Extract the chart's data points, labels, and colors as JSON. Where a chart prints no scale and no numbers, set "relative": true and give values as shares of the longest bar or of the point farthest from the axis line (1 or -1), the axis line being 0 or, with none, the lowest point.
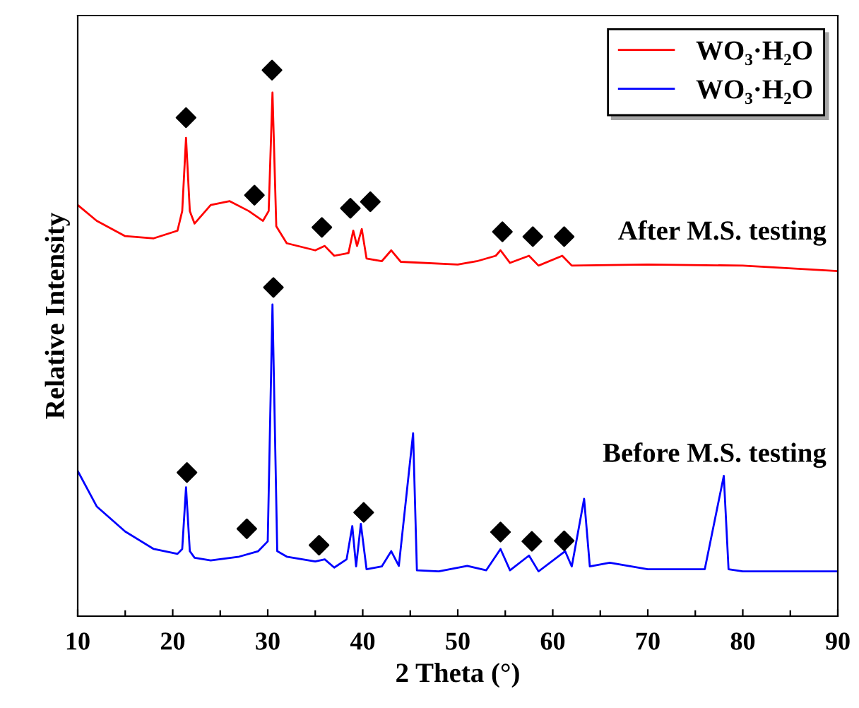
{
  "chart_data": {
    "type": "line",
    "relative": true,
    "xlabel": "2 Theta (°)",
    "ylabel": "Relative Intensity",
    "xlim": [
      10,
      90
    ],
    "xticks": [
      10,
      {
        "value": 15,
        "label": null
      },
      20,
      {
        "value": 25,
        "label": null
      },
      30,
      {
        "value": 35,
        "label": null
      },
      40,
      {
        "value": 45,
        "label": null
      },
      50,
      {
        "value": 55,
        "label": null
      },
      60,
      {
        "value": 65,
        "label": null
      },
      70,
      {
        "value": 75,
        "label": null
      },
      80,
      {
        "value": 85,
        "label": null
      },
      90
    ],
    "tick_labels": "x",
    "grid": false,
    "legend": "top right",
    "marker": "none",
    "line_style": "solid",
    "series": [
      {
        "name": "WO₃·H₂O",
        "color": "#ff0000",
        "x": [
          10,
          12,
          15,
          18,
          20.5,
          21.0,
          21.4,
          21.8,
          22.3,
          24,
          26,
          28,
          29.5,
          30.1,
          30.5,
          30.9,
          32,
          35,
          36,
          37,
          38.5,
          39,
          39.4,
          39.9,
          40.4,
          42,
          43,
          44,
          50,
          52,
          54,
          54.5,
          55.5,
          57.5,
          58.5,
          61,
          62,
          70,
          80,
          90
        ],
        "values": [
          0.753,
          0.724,
          0.696,
          0.692,
          0.706,
          0.742,
          0.876,
          0.742,
          0.719,
          0.753,
          0.76,
          0.742,
          0.724,
          0.742,
          0.959,
          0.714,
          0.683,
          0.67,
          0.678,
          0.66,
          0.665,
          0.706,
          0.678,
          0.709,
          0.655,
          0.65,
          0.67,
          0.649,
          0.644,
          0.65,
          0.66,
          0.67,
          0.647,
          0.66,
          0.642,
          0.66,
          0.642,
          0.644,
          0.642,
          0.632
        ]
      },
      {
        "name": "WO₃·H₂O",
        "color": "#0000ff",
        "x": [
          10,
          12,
          15,
          18,
          20.5,
          21.0,
          21.4,
          21.8,
          22.3,
          24,
          27,
          29,
          30,
          30.5,
          31,
          32,
          35,
          36,
          37,
          38.3,
          38.9,
          39.3,
          39.8,
          40.4,
          42,
          43,
          43.8,
          45.3,
          45.7,
          48,
          51,
          53,
          54.5,
          55.5,
          57.5,
          58.5,
          61.3,
          62,
          63.3,
          63.9,
          66,
          70,
          76,
          78.0,
          78.5,
          80,
          90
        ],
        "values": [
          0.266,
          0.201,
          0.155,
          0.123,
          0.114,
          0.123,
          0.236,
          0.119,
          0.107,
          0.102,
          0.109,
          0.119,
          0.137,
          0.571,
          0.119,
          0.109,
          0.1,
          0.104,
          0.089,
          0.104,
          0.165,
          0.091,
          0.169,
          0.086,
          0.091,
          0.119,
          0.092,
          0.335,
          0.084,
          0.082,
          0.092,
          0.084,
          0.123,
          0.084,
          0.111,
          0.082,
          0.119,
          0.091,
          0.215,
          0.091,
          0.098,
          0.086,
          0.086,
          0.257,
          0.086,
          0.082,
          0.082
        ]
      },
      {
        "type": "scatter",
        "marker": "diamond",
        "color": "#000000",
        "x": [
          21.4,
          30.45,
          28.6,
          35.7,
          38.7,
          40.8,
          54.7,
          57.9,
          61.2
        ],
        "values": [
          0.913,
          1.0,
          0.771,
          0.712,
          0.747,
          0.759,
          0.704,
          0.695,
          0.695
        ]
      },
      {
        "type": "scatter",
        "marker": "diamond",
        "color": "#000000",
        "x": [
          21.5,
          30.6,
          27.8,
          35.4,
          40.1,
          54.5,
          57.8,
          61.2
        ],
        "values": [
          0.263,
          0.602,
          0.16,
          0.13,
          0.19,
          0.154,
          0.137,
          0.138
        ]
      }
    ],
    "annotations": [
      "After M.S. testing",
      "Before M.S. testing"
    ]
  }
}
